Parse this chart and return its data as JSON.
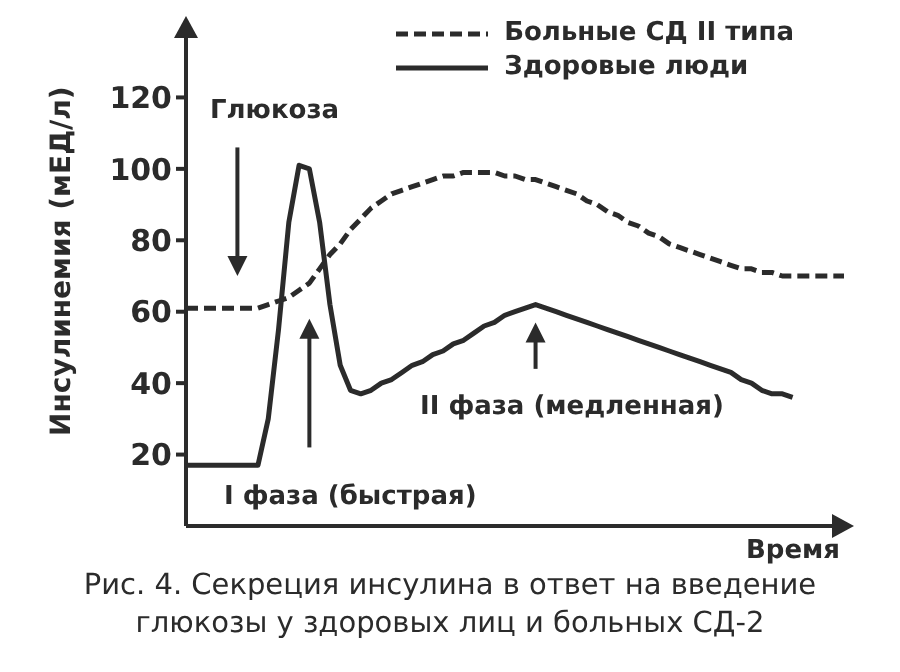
{
  "chart_data": {
    "type": "line",
    "xlabel": "Время",
    "ylabel": "Инсулинемия (мЕД/л)",
    "categories": [
      null,
      null,
      null,
      null,
      null,
      null,
      null,
      null,
      null,
      null,
      null,
      null,
      null,
      null,
      null,
      null,
      null,
      null,
      null,
      null,
      null,
      null,
      null,
      null,
      null,
      null,
      null,
      null,
      null,
      null,
      null,
      null,
      null,
      null,
      null,
      null,
      null,
      null,
      null,
      null,
      null,
      null,
      null,
      null,
      null,
      null,
      null,
      null,
      null,
      null,
      null,
      null,
      null,
      null,
      null,
      null,
      null,
      null,
      null,
      null,
      null,
      null,
      null,
      null,
      null
    ],
    "series": [
      {
        "name": "Больные СД II типа",
        "color": "#2b2b2b",
        "line_style": "dashed",
        "values": [
          61,
          61,
          61,
          61,
          61,
          61,
          61,
          61,
          62,
          63,
          64,
          66,
          68,
          72,
          76,
          79,
          83,
          86,
          89,
          91,
          93,
          94,
          95,
          96,
          97,
          98,
          98,
          99,
          99,
          99,
          99,
          98,
          98,
          97,
          97,
          96,
          95,
          94,
          93,
          91,
          90,
          88,
          87,
          85,
          84,
          82,
          81,
          79,
          78,
          77,
          76,
          75,
          74,
          73,
          72,
          72,
          71,
          71,
          70,
          70,
          70,
          70,
          70,
          70,
          70
        ]
      },
      {
        "name": "Здоровые люди",
        "color": "#2b2b2b",
        "line_style": "solid",
        "values": [
          17,
          17,
          17,
          17,
          17,
          17,
          17,
          17,
          30,
          55,
          85,
          101,
          100,
          85,
          62,
          45,
          38,
          37,
          38,
          40,
          41,
          43,
          45,
          46,
          48,
          49,
          51,
          52,
          54,
          56,
          57,
          59,
          60,
          61,
          62,
          61,
          60,
          59,
          58,
          57,
          56,
          55,
          54,
          53,
          52,
          51,
          50,
          49,
          48,
          47,
          46,
          45,
          44,
          43,
          41,
          40,
          38,
          37,
          37,
          36,
          null,
          null,
          null,
          null,
          null
        ]
      }
    ],
    "ylim": [
      0,
      140
    ],
    "yticks": [
      20,
      40,
      60,
      80,
      100,
      120
    ],
    "grid": false,
    "legend": "top right",
    "marker": "none",
    "tick_labels": "y",
    "annotations": [
      "Глюкоза",
      "I фаза (быстрая)",
      "II фаза (медленная)",
      "Рис. 4. Секреция инсулина в ответ на введение глюкозы у здоровых лиц и больных СД-2"
    ]
  }
}
